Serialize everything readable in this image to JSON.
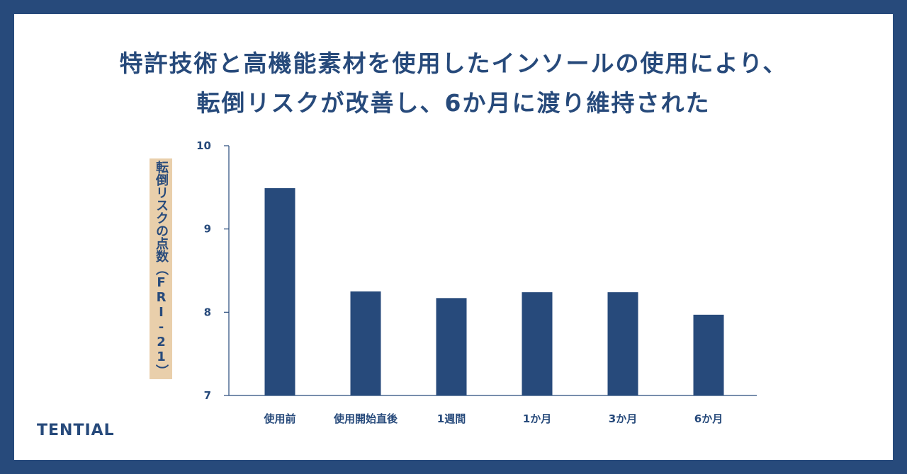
{
  "header": {
    "title_line1": "特許技術と高機能素材を使用したインソールの使用により、",
    "title_line2": "転倒リスクが改善し、6か月に渡り維持された"
  },
  "brand": {
    "logo_text": "TENTIAL"
  },
  "colors": {
    "bar": "#274a7b",
    "frame": "#274a7b",
    "label_bg": "#e9cfab",
    "axis": "#274a7b"
  },
  "chart_data": {
    "type": "bar",
    "ylabel": "転倒リスクの点数（FRI-21）",
    "categories": [
      "使用前",
      "使用開始直後",
      "1週間",
      "1か月",
      "3か月",
      "6か月"
    ],
    "values": [
      9.49,
      8.25,
      8.17,
      8.24,
      8.24,
      7.97
    ],
    "ylim": [
      7,
      10
    ],
    "yticks": [
      7,
      8,
      9,
      10
    ],
    "grid": false,
    "legend": "none"
  }
}
